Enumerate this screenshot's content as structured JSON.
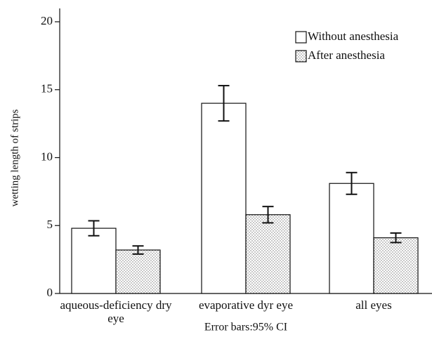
{
  "chart_data": {
    "type": "bar",
    "y_label": "wetting length of strips",
    "footnote": "Error bars:95% CI",
    "categories": [
      "aqueous-deficiency dry eye",
      "evaporative dyr eye",
      "all eyes"
    ],
    "series": [
      {
        "name": "Without anesthesia",
        "color": "#ffffff",
        "values": [
          4.8,
          14.0,
          8.1
        ],
        "errors": [
          0.55,
          1.3,
          0.8
        ]
      },
      {
        "name": "After anesthesia",
        "color": "#ffffff",
        "hatch": "dots",
        "values": [
          3.2,
          5.8,
          4.1
        ],
        "errors": [
          0.3,
          0.6,
          0.35
        ]
      }
    ],
    "ylim": [
      0,
      20
    ],
    "yticks": [
      0,
      5,
      10,
      15,
      20
    ],
    "grid": false,
    "legend": "upper right"
  }
}
